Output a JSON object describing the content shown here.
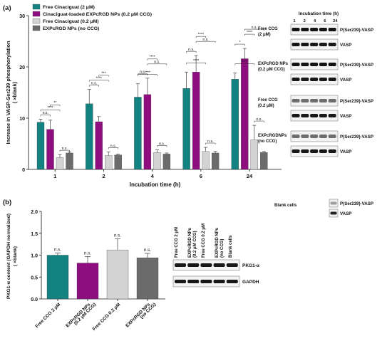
{
  "panel_a": {
    "label": "(a)",
    "legend": [
      {
        "name": "Free Cinaciguat (2 μM)",
        "color": "#138381"
      },
      {
        "name": "Cinaciguat-loaded EXPcRGD NPs (0.2 μM CCG)",
        "color": "#8f0e7f"
      },
      {
        "name": "Free Cinaciguat (0.2 μM)",
        "color": "#d3d3d3"
      },
      {
        "name": "EXPcRGD NPs (no CCG)",
        "color": "#6b6b6b"
      }
    ],
    "blot": {
      "header": "Incubation time (h)",
      "times": [
        "1",
        "2",
        "4",
        "6",
        "24"
      ],
      "groups": [
        {
          "label": "Free CCG\n(2 μM)",
          "bands": [
            "P(Ser239)-VASP",
            "VASP"
          ]
        },
        {
          "label": "EXPcRGD NPs\n(0.2 μM CCG)",
          "bands": [
            "P(Ser239)-VASP",
            "VASP"
          ]
        },
        {
          "label": "Free CCG\n(0.2 μM)",
          "bands": [
            "P(Ser239)-VASP",
            "VASP"
          ]
        },
        {
          "label": "EXPcRGDNPs\n(no CCG)",
          "bands": [
            "P(Ser239)-VASP",
            "VASP"
          ]
        }
      ],
      "blank_label": "Blank cells",
      "blank_bands": [
        "P(Ser239)-VASP",
        "VASP"
      ]
    }
  },
  "panel_b": {
    "label": "(b)",
    "blot": {
      "lanes": [
        "Free CCG 2 μM",
        "EXPcRGD NPs\n(0.2 μM CCG)",
        "Free CCG 0.2 μM",
        "EXPcRGD NPs\n(no CCG)",
        "Blank cells"
      ],
      "bands": [
        "PKG1-α",
        "GAPDH"
      ]
    }
  },
  "chart_data": [
    {
      "type": "bar",
      "xlabel": "Incubation time (h)",
      "ylabel": "Increase in VASP-Ser239 phosphorylation\n( ×blank)",
      "ylim": [
        0,
        30
      ],
      "yticks": [
        0,
        10,
        20,
        30
      ],
      "categories": [
        "1",
        "2",
        "4",
        "6",
        "24"
      ],
      "series": [
        {
          "name": "Free Cinaciguat (2 μM)",
          "color": "#138381",
          "values": [
            9.2,
            12.8,
            14.1,
            15.8,
            17.6
          ],
          "errors": [
            0.6,
            2.8,
            2.6,
            3.2,
            1.2
          ]
        },
        {
          "name": "Cinaciguat-loaded EXPcRGD NPs (0.2 μM CCG)",
          "color": "#8f0e7f",
          "values": [
            7.8,
            9.3,
            14.6,
            19.0,
            21.6
          ],
          "errors": [
            1.8,
            1.0,
            3.2,
            3.2,
            2.0
          ]
        },
        {
          "name": "Free Cinaciguat (0.2 μM)",
          "color": "#d3d3d3",
          "values": [
            2.3,
            2.7,
            3.3,
            3.5,
            5.8
          ],
          "errors": [
            0.6,
            0.7,
            0.5,
            0.8,
            2.8
          ]
        },
        {
          "name": "EXPcRGD NPs (no CCG)",
          "color": "#6b6b6b",
          "values": [
            3.2,
            2.8,
            3.0,
            3.2,
            3.3
          ],
          "errors": [
            0.2,
            0.2,
            0.2,
            0.3,
            0.2
          ]
        }
      ],
      "annotations": [
        "n.s.",
        "****",
        "n.s.",
        "**",
        "n.s.",
        "n.s.",
        "****",
        "***",
        "n.s.",
        "n.s.",
        "****",
        "n.s.",
        "****",
        "n.s.",
        "n.s.",
        "****",
        "n.s.",
        "****",
        "n.s.",
        "*",
        "****",
        "****",
        "n.s."
      ]
    },
    {
      "type": "bar",
      "ylabel": "PKG1-α content (GAPDH normalized)\n( ×blank)",
      "ylim": [
        0,
        2.0
      ],
      "yticks": [
        0.0,
        0.5,
        1.0,
        1.5,
        2.0
      ],
      "categories": [
        "Free CCG 2 μM",
        "EXPcRGD NPs\n(0.2 μM CCG)",
        "Free CCG 0.2 μM",
        "EXPcRGD NPs\n(no CCG)"
      ],
      "values": [
        1.0,
        0.82,
        1.12,
        0.94
      ],
      "errors": [
        0.05,
        0.15,
        0.25,
        0.1
      ],
      "colors": [
        "#138381",
        "#8f0e7f",
        "#d3d3d3",
        "#6b6b6b"
      ],
      "annotations": [
        "n.s.",
        "n.s.",
        "n.s.",
        "n.s."
      ]
    }
  ]
}
